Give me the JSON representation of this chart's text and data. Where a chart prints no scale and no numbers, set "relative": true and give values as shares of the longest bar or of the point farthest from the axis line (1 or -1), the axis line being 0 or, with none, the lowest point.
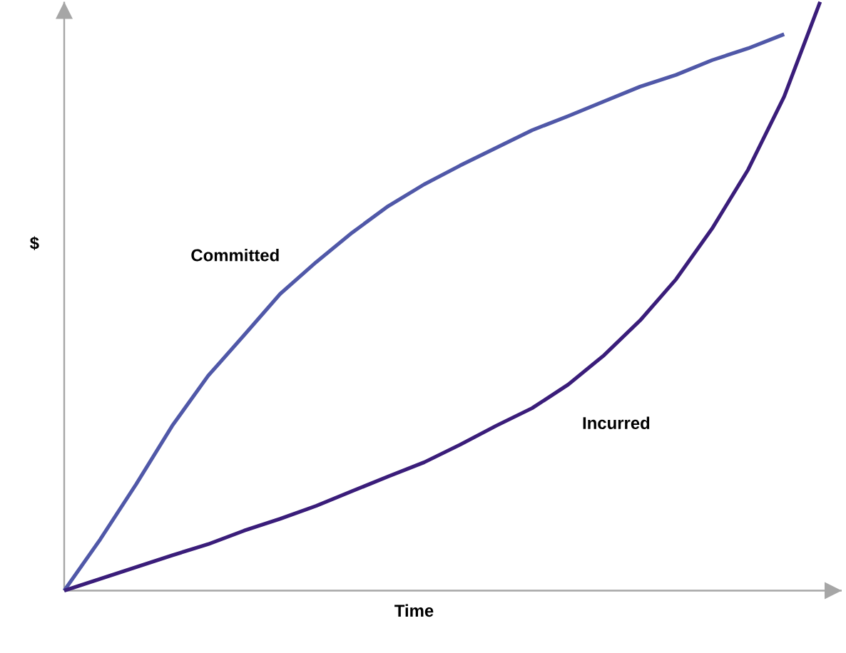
{
  "chart_data": {
    "type": "line",
    "relative": true,
    "xlabel": "Time",
    "ylabel": "$",
    "categories": [
      null,
      null,
      null,
      null,
      null,
      null,
      null,
      null,
      null,
      null,
      null,
      null,
      null,
      null,
      null,
      null,
      null,
      null,
      null,
      null,
      null,
      null
    ],
    "series": [
      {
        "name": "Committed",
        "color": "#5058a8",
        "values": [
          0,
          0.087,
          0.181,
          0.28,
          0.365,
          0.434,
          0.504,
          0.558,
          0.608,
          0.653,
          0.69,
          0.722,
          0.752,
          0.782,
          0.806,
          0.831,
          0.856,
          0.876,
          0.901,
          0.921,
          0.945,
          null
        ]
      },
      {
        "name": "Incurred",
        "color": "#3a1d7a",
        "values": [
          0,
          0.02,
          0.04,
          0.06,
          0.079,
          0.102,
          0.122,
          0.144,
          0.169,
          0.194,
          0.218,
          0.248,
          0.28,
          0.31,
          0.35,
          0.4,
          0.459,
          0.529,
          0.615,
          0.715,
          0.839,
          1
        ]
      }
    ],
    "legend": false,
    "grid": false,
    "marker": "none",
    "line_style": "solid"
  }
}
